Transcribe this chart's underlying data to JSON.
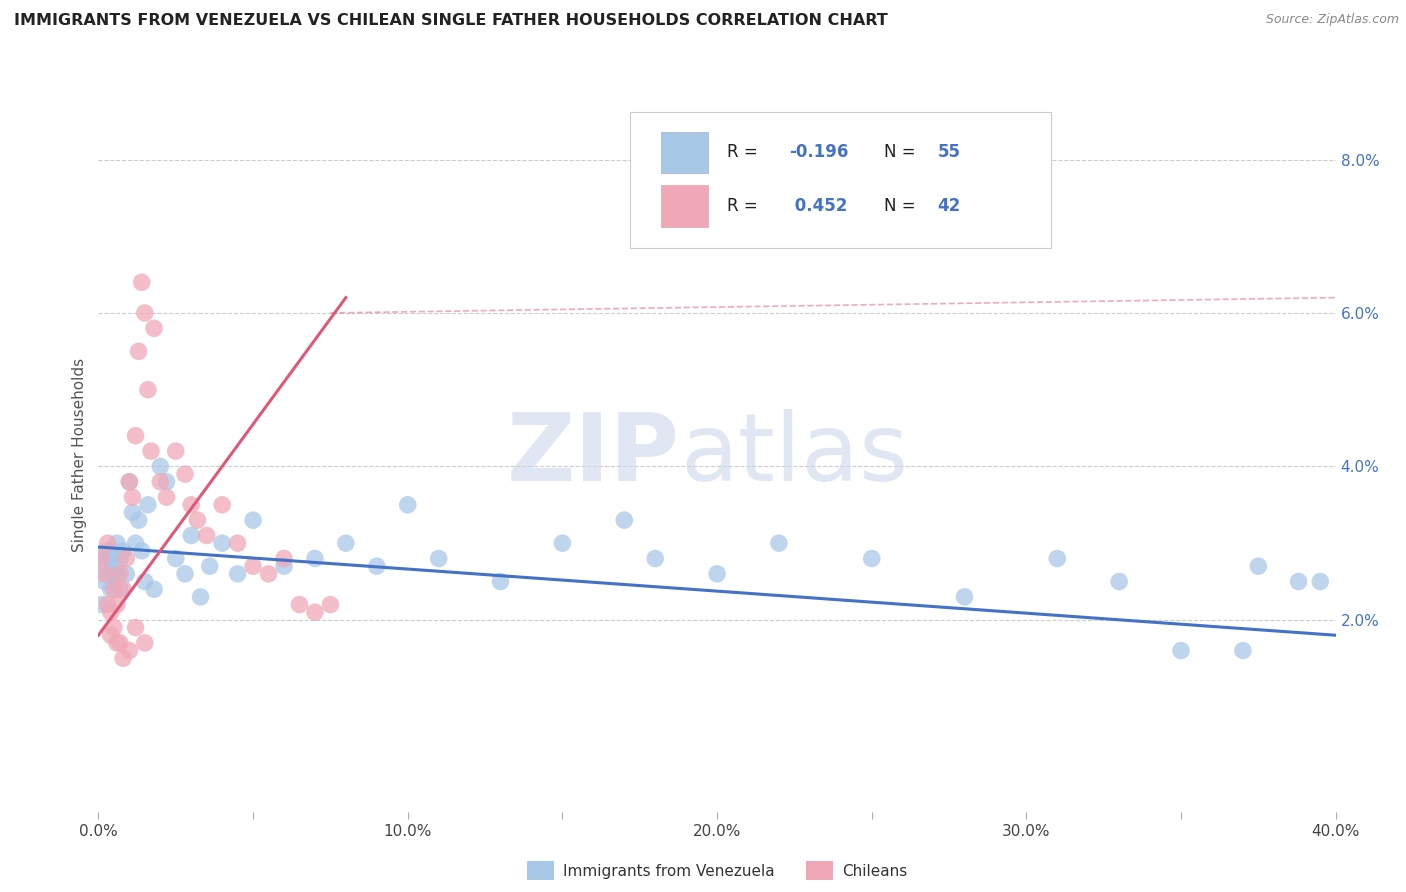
{
  "title": "IMMIGRANTS FROM VENEZUELA VS CHILEAN SINGLE FATHER HOUSEHOLDS CORRELATION CHART",
  "source": "Source: ZipAtlas.com",
  "ylabel": "Single Father Households",
  "xlim": [
    0.0,
    0.4
  ],
  "ylim": [
    -0.005,
    0.088
  ],
  "xticklabels": [
    "0.0%",
    "",
    "10.0%",
    "",
    "20.0%",
    "",
    "30.0%",
    "",
    "40.0%"
  ],
  "yticklabels_right": [
    "2.0%",
    "4.0%",
    "6.0%",
    "8.0%"
  ],
  "color_blue": "#a8c8e8",
  "color_pink": "#f0a8b8",
  "line_blue": "#4472c4",
  "line_pink": "#e05878",
  "watermark_zip": "ZIP",
  "watermark_atlas": "atlas",
  "blue_dots": [
    [
      0.001,
      0.0285
    ],
    [
      0.002,
      0.027
    ],
    [
      0.002,
      0.025
    ],
    [
      0.003,
      0.029
    ],
    [
      0.003,
      0.026
    ],
    [
      0.004,
      0.028
    ],
    [
      0.004,
      0.024
    ],
    [
      0.005,
      0.027
    ],
    [
      0.005,
      0.025
    ],
    [
      0.006,
      0.03
    ],
    [
      0.006,
      0.026
    ],
    [
      0.007,
      0.028
    ],
    [
      0.007,
      0.024
    ],
    [
      0.008,
      0.029
    ],
    [
      0.009,
      0.026
    ],
    [
      0.01,
      0.038
    ],
    [
      0.011,
      0.034
    ],
    [
      0.012,
      0.03
    ],
    [
      0.013,
      0.033
    ],
    [
      0.014,
      0.029
    ],
    [
      0.015,
      0.025
    ],
    [
      0.016,
      0.035
    ],
    [
      0.018,
      0.024
    ],
    [
      0.02,
      0.04
    ],
    [
      0.022,
      0.038
    ],
    [
      0.025,
      0.028
    ],
    [
      0.028,
      0.026
    ],
    [
      0.03,
      0.031
    ],
    [
      0.033,
      0.023
    ],
    [
      0.036,
      0.027
    ],
    [
      0.04,
      0.03
    ],
    [
      0.045,
      0.026
    ],
    [
      0.05,
      0.033
    ],
    [
      0.06,
      0.027
    ],
    [
      0.07,
      0.028
    ],
    [
      0.08,
      0.03
    ],
    [
      0.09,
      0.027
    ],
    [
      0.1,
      0.035
    ],
    [
      0.11,
      0.028
    ],
    [
      0.13,
      0.025
    ],
    [
      0.15,
      0.03
    ],
    [
      0.17,
      0.033
    ],
    [
      0.18,
      0.028
    ],
    [
      0.2,
      0.026
    ],
    [
      0.22,
      0.03
    ],
    [
      0.25,
      0.028
    ],
    [
      0.28,
      0.023
    ],
    [
      0.31,
      0.028
    ],
    [
      0.33,
      0.025
    ],
    [
      0.35,
      0.016
    ],
    [
      0.37,
      0.016
    ],
    [
      0.375,
      0.027
    ],
    [
      0.388,
      0.025
    ],
    [
      0.395,
      0.025
    ],
    [
      0.001,
      0.022
    ]
  ],
  "pink_dots": [
    [
      0.001,
      0.028
    ],
    [
      0.002,
      0.026
    ],
    [
      0.003,
      0.03
    ],
    [
      0.003,
      0.022
    ],
    [
      0.004,
      0.021
    ],
    [
      0.004,
      0.018
    ],
    [
      0.005,
      0.024
    ],
    [
      0.005,
      0.019
    ],
    [
      0.006,
      0.022
    ],
    [
      0.006,
      0.017
    ],
    [
      0.007,
      0.026
    ],
    [
      0.007,
      0.017
    ],
    [
      0.008,
      0.024
    ],
    [
      0.008,
      0.015
    ],
    [
      0.009,
      0.028
    ],
    [
      0.01,
      0.038
    ],
    [
      0.01,
      0.016
    ],
    [
      0.011,
      0.036
    ],
    [
      0.012,
      0.044
    ],
    [
      0.012,
      0.019
    ],
    [
      0.013,
      0.055
    ],
    [
      0.014,
      0.064
    ],
    [
      0.015,
      0.06
    ],
    [
      0.015,
      0.017
    ],
    [
      0.016,
      0.05
    ],
    [
      0.017,
      0.042
    ],
    [
      0.018,
      0.058
    ],
    [
      0.02,
      0.038
    ],
    [
      0.022,
      0.036
    ],
    [
      0.025,
      0.042
    ],
    [
      0.028,
      0.039
    ],
    [
      0.03,
      0.035
    ],
    [
      0.032,
      0.033
    ],
    [
      0.035,
      0.031
    ],
    [
      0.04,
      0.035
    ],
    [
      0.045,
      0.03
    ],
    [
      0.05,
      0.027
    ],
    [
      0.055,
      0.026
    ],
    [
      0.06,
      0.028
    ],
    [
      0.065,
      0.022
    ],
    [
      0.07,
      0.021
    ],
    [
      0.075,
      0.022
    ]
  ],
  "blue_line_x": [
    0.0,
    0.4
  ],
  "blue_line_y": [
    0.0295,
    0.018
  ],
  "pink_line_x": [
    0.0,
    0.08
  ],
  "pink_line_y": [
    0.018,
    0.062
  ]
}
